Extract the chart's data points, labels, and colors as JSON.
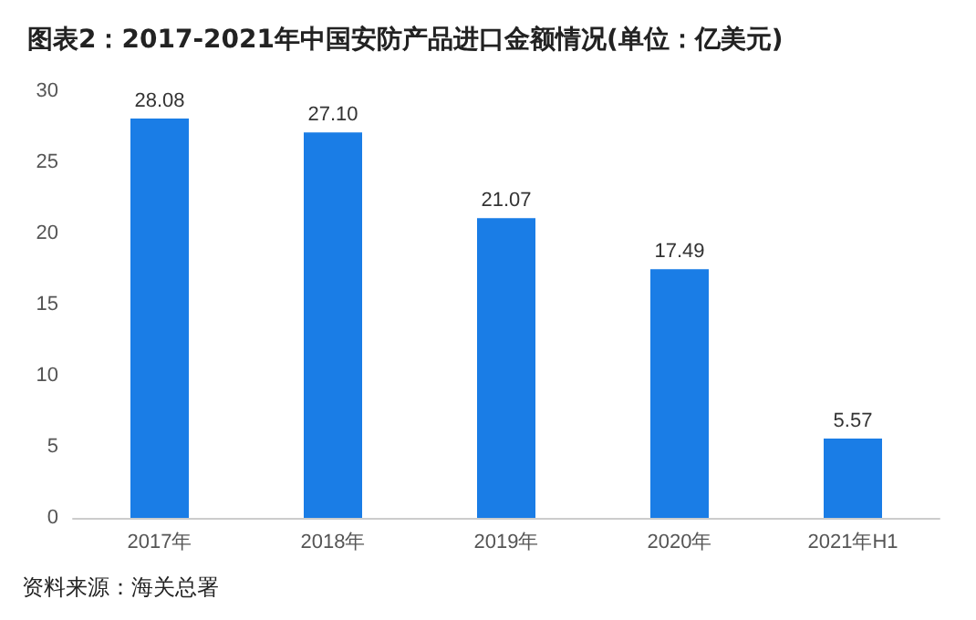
{
  "chart_data": {
    "type": "bar",
    "title": "图表2：2017-2021年中国安防产品进口金额情况(单位：亿美元)",
    "categories": [
      "2017年",
      "2018年",
      "2019年",
      "2020年",
      "2021年H1"
    ],
    "values": [
      28.08,
      27.1,
      21.07,
      17.49,
      5.57
    ],
    "value_labels": [
      "28.08",
      "27.10",
      "21.07",
      "17.49",
      "5.57"
    ],
    "color": "#1a7de6",
    "ylim": [
      0,
      30
    ],
    "yticks": [
      0,
      5,
      10,
      15,
      20,
      25,
      30
    ],
    "grid": false,
    "annotations": [
      "资料来源：海关总署"
    ]
  }
}
